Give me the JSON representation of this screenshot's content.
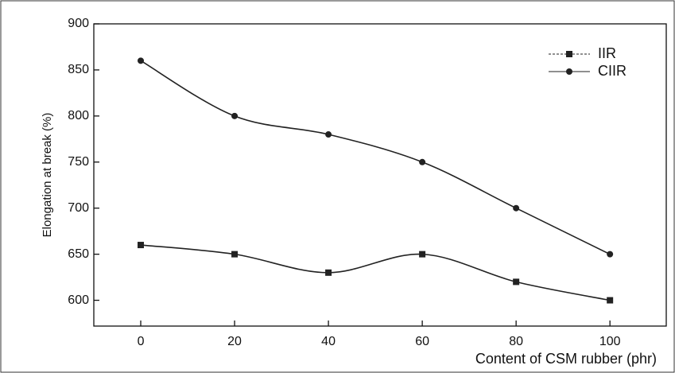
{
  "chart_data": {
    "type": "line",
    "x_label": "Content of CSM rubber (phr)",
    "y_label": "Elongation at break (%)",
    "x": [
      0,
      20,
      40,
      60,
      80,
      100
    ],
    "series": [
      {
        "name": "IIR",
        "color": "#222222",
        "marker": "square",
        "values": [
          660,
          650,
          630,
          650,
          620,
          600
        ]
      },
      {
        "name": "CIIR",
        "color": "#222222",
        "marker": "circle",
        "values": [
          860,
          800,
          780,
          750,
          700,
          650
        ]
      }
    ],
    "xlim": [
      -10,
      112
    ],
    "xticks": [
      0,
      20,
      40,
      60,
      80,
      100
    ],
    "ylim": [
      572,
      900
    ],
    "yticks": [
      600,
      650,
      700,
      750,
      800,
      850,
      900
    ],
    "legend": "top-right"
  }
}
